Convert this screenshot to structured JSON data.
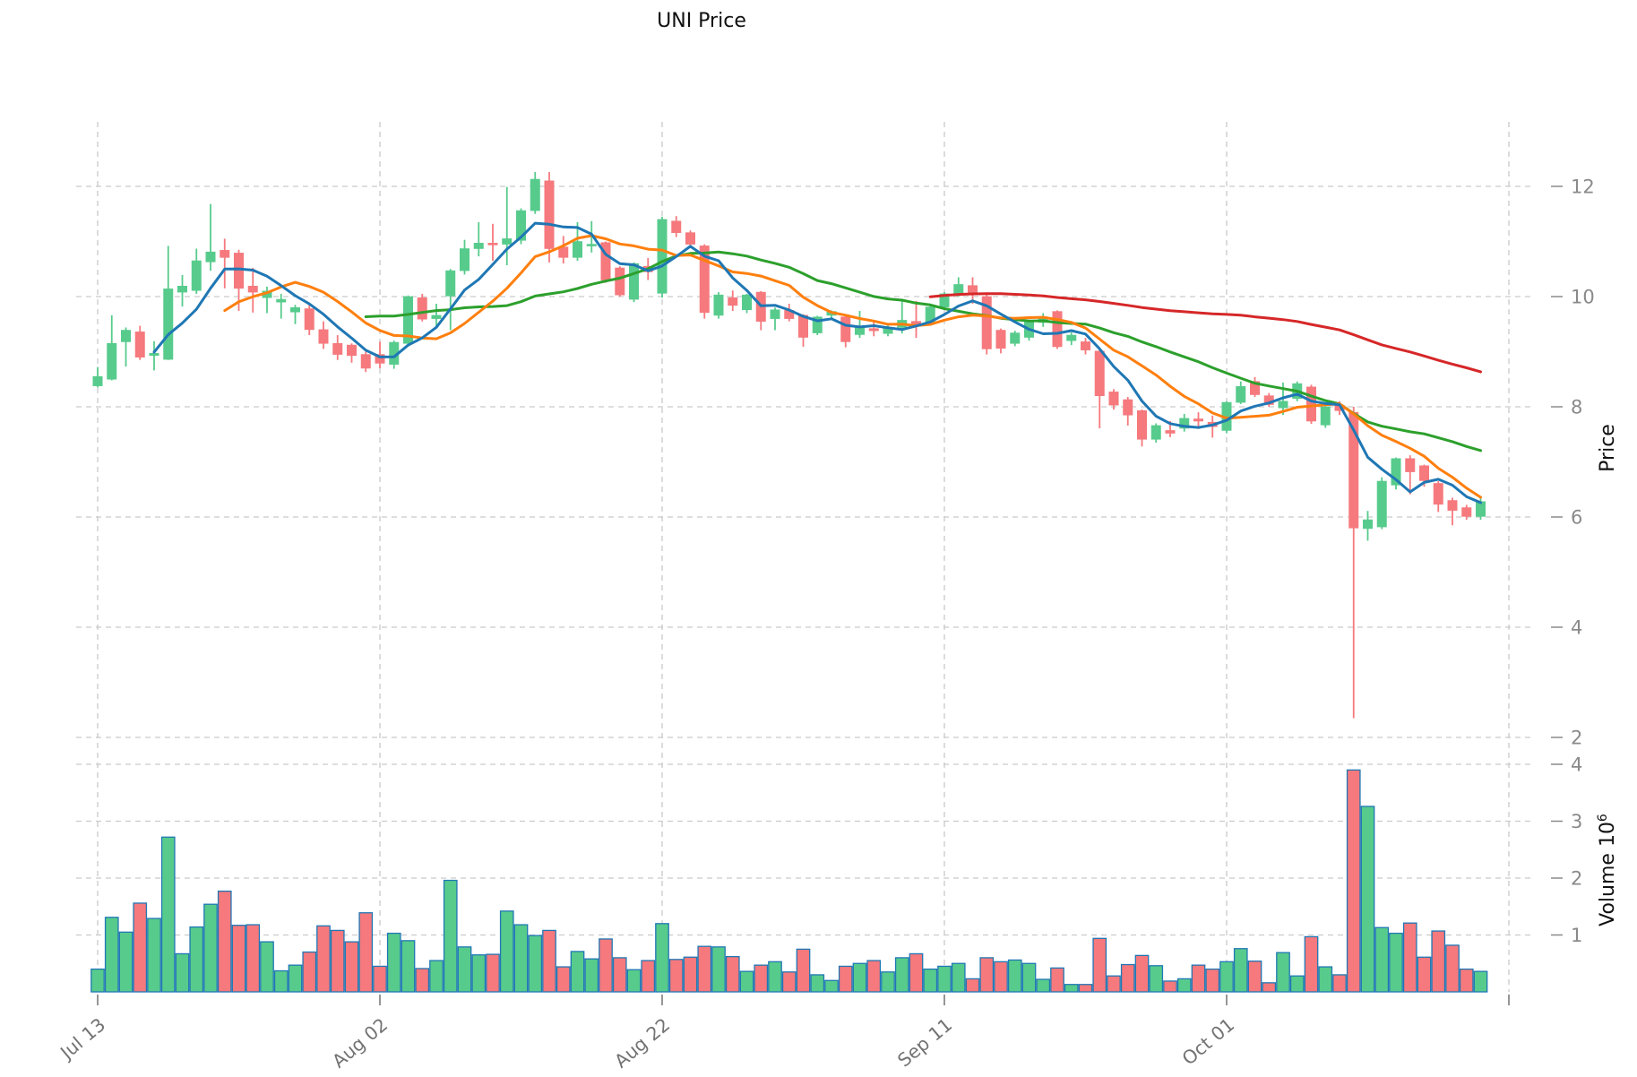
{
  "title": "UNI Price",
  "axes": {
    "price_label": "Price",
    "volume_label": "Volume",
    "volume_exponent": "6",
    "price_ticks": [
      2,
      4,
      6,
      8,
      10,
      12
    ],
    "volume_ticks": [
      1,
      2,
      3,
      4
    ],
    "x_ticks": [
      {
        "i": 0,
        "label": "Jul 13"
      },
      {
        "i": 20,
        "label": "Aug 02"
      },
      {
        "i": 40,
        "label": "Aug 22"
      },
      {
        "i": 60,
        "label": "Sep 11"
      },
      {
        "i": 80,
        "label": "Oct 01"
      },
      {
        "i": 100,
        "label": ""
      }
    ]
  },
  "colors": {
    "up": "#57CB8C",
    "down": "#F5797D",
    "volume_edge": "#2077B4",
    "ma5": "#1F77B4",
    "ma10": "#FF7F0E",
    "ma20": "#2CA02C",
    "ma60": "#D62728",
    "grid": "#CBCBCB",
    "ytick_text": "#8A8A8A",
    "xtick_text": "#737373",
    "axis_label_text": "#111111",
    "title_text": "#111111"
  },
  "chart_data": {
    "type": "candlestick+volume",
    "title": "UNI Price",
    "ylabel_price": "Price",
    "ylabel_volume": "Volume 10^6",
    "price_axis_range": [
      1.8,
      13.2
    ],
    "volume_axis_range_millions": [
      0,
      4.15
    ],
    "grid": "dashed",
    "moving_average_windows": [
      5,
      10,
      20,
      60
    ],
    "x_start_date": "Jul 13",
    "x_end_date": "Oct 19",
    "x_tick_labels": [
      "Jul 13",
      "Aug 02",
      "Aug 22",
      "Sep 11",
      "Oct 01"
    ],
    "ohlcv_columns": [
      "open",
      "high",
      "low",
      "close",
      "volume_millions"
    ],
    "ohlcv": [
      [
        8.38,
        8.72,
        8.35,
        8.55,
        0.4
      ],
      [
        8.5,
        9.66,
        8.48,
        9.15,
        1.31
      ],
      [
        9.18,
        9.44,
        8.73,
        9.39,
        1.05
      ],
      [
        9.36,
        9.47,
        8.85,
        8.9,
        1.56
      ],
      [
        8.93,
        9.19,
        8.66,
        8.97,
        1.29
      ],
      [
        8.86,
        10.92,
        8.85,
        10.14,
        2.72
      ],
      [
        10.08,
        10.39,
        9.82,
        10.19,
        0.67
      ],
      [
        10.11,
        10.87,
        10.05,
        10.65,
        1.14
      ],
      [
        10.63,
        11.68,
        10.47,
        10.81,
        1.54
      ],
      [
        10.84,
        11.05,
        10.15,
        10.71,
        1.77
      ],
      [
        10.79,
        10.85,
        9.74,
        10.15,
        1.17
      ],
      [
        10.19,
        10.52,
        9.71,
        10.08,
        1.18
      ],
      [
        9.98,
        10.18,
        9.7,
        10.1,
        0.88
      ],
      [
        9.9,
        10.05,
        9.6,
        9.95,
        0.37
      ],
      [
        9.72,
        9.85,
        9.5,
        9.8,
        0.47
      ],
      [
        9.78,
        9.85,
        9.3,
        9.4,
        0.7
      ],
      [
        9.4,
        9.55,
        9.05,
        9.15,
        1.16
      ],
      [
        9.15,
        9.3,
        8.85,
        8.95,
        1.08
      ],
      [
        9.12,
        9.15,
        8.8,
        8.93,
        0.88
      ],
      [
        8.95,
        9.0,
        8.63,
        8.7,
        1.39
      ],
      [
        8.95,
        9.18,
        8.7,
        8.79,
        0.45
      ],
      [
        8.77,
        9.2,
        8.69,
        9.17,
        1.03
      ],
      [
        9.15,
        10.02,
        9.1,
        10.0,
        0.9
      ],
      [
        9.98,
        10.05,
        9.55,
        9.59,
        0.41
      ],
      [
        9.6,
        9.87,
        9.44,
        9.66,
        0.55
      ],
      [
        10.01,
        10.5,
        9.39,
        10.47,
        1.96
      ],
      [
        10.47,
        11.03,
        10.4,
        10.87,
        0.79
      ],
      [
        10.87,
        11.35,
        10.73,
        10.97,
        0.65
      ],
      [
        10.97,
        11.32,
        10.65,
        10.95,
        0.66
      ],
      [
        10.95,
        11.99,
        10.57,
        11.05,
        1.42
      ],
      [
        11.02,
        11.6,
        10.95,
        11.56,
        1.18
      ],
      [
        11.56,
        12.26,
        11.5,
        12.13,
        0.99
      ],
      [
        12.1,
        12.26,
        10.62,
        10.87,
        1.08
      ],
      [
        10.9,
        11.1,
        10.6,
        10.71,
        0.44
      ],
      [
        10.71,
        11.35,
        10.65,
        11.0,
        0.71
      ],
      [
        10.93,
        11.37,
        10.8,
        10.95,
        0.58
      ],
      [
        10.98,
        11.0,
        10.25,
        10.3,
        0.93
      ],
      [
        10.52,
        10.55,
        10.0,
        10.03,
        0.6
      ],
      [
        9.95,
        10.62,
        9.9,
        10.6,
        0.39
      ],
      [
        10.55,
        10.7,
        10.3,
        10.45,
        0.55
      ],
      [
        10.06,
        11.45,
        9.98,
        11.4,
        1.2
      ],
      [
        11.37,
        11.46,
        11.08,
        11.16,
        0.57
      ],
      [
        11.16,
        11.2,
        10.88,
        10.95,
        0.61
      ],
      [
        10.92,
        10.95,
        9.6,
        9.71,
        0.8
      ],
      [
        9.66,
        10.08,
        9.6,
        10.03,
        0.79
      ],
      [
        9.98,
        10.11,
        9.74,
        9.84,
        0.62
      ],
      [
        9.76,
        10.05,
        9.7,
        10.03,
        0.36
      ],
      [
        10.08,
        10.1,
        9.39,
        9.55,
        0.47
      ],
      [
        9.6,
        9.8,
        9.39,
        9.76,
        0.53
      ],
      [
        9.75,
        9.87,
        9.55,
        9.6,
        0.35
      ],
      [
        9.66,
        9.68,
        9.09,
        9.26,
        0.75
      ],
      [
        9.34,
        9.65,
        9.3,
        9.63,
        0.3
      ],
      [
        9.66,
        9.75,
        9.58,
        9.73,
        0.2
      ],
      [
        9.63,
        9.65,
        9.08,
        9.18,
        0.45
      ],
      [
        9.31,
        9.74,
        9.25,
        9.44,
        0.5
      ],
      [
        9.42,
        9.55,
        9.28,
        9.38,
        0.55
      ],
      [
        9.33,
        9.5,
        9.28,
        9.44,
        0.35
      ],
      [
        9.44,
        9.92,
        9.33,
        9.57,
        0.6
      ],
      [
        9.55,
        9.92,
        9.25,
        9.5,
        0.67
      ],
      [
        9.53,
        9.85,
        9.48,
        9.81,
        0.4
      ],
      [
        9.81,
        10.08,
        9.78,
        10.05,
        0.45
      ],
      [
        10.03,
        10.35,
        10.0,
        10.22,
        0.5
      ],
      [
        10.2,
        10.35,
        9.87,
        10.03,
        0.23
      ],
      [
        10.0,
        10.05,
        8.95,
        9.05,
        0.6
      ],
      [
        9.39,
        9.42,
        8.97,
        9.06,
        0.53
      ],
      [
        9.15,
        9.38,
        9.1,
        9.34,
        0.56
      ],
      [
        9.26,
        9.58,
        9.2,
        9.55,
        0.5
      ],
      [
        9.53,
        9.7,
        9.45,
        9.63,
        0.22
      ],
      [
        9.73,
        9.75,
        9.05,
        9.09,
        0.42
      ],
      [
        9.2,
        9.35,
        9.12,
        9.3,
        0.13
      ],
      [
        9.18,
        9.25,
        8.95,
        9.03,
        0.13
      ],
      [
        9.01,
        9.05,
        7.61,
        8.2,
        0.94
      ],
      [
        8.27,
        8.32,
        7.95,
        8.03,
        0.28
      ],
      [
        8.13,
        8.18,
        7.66,
        7.85,
        0.48
      ],
      [
        7.93,
        7.95,
        7.28,
        7.41,
        0.64
      ],
      [
        7.41,
        7.7,
        7.35,
        7.66,
        0.46
      ],
      [
        7.57,
        7.74,
        7.45,
        7.52,
        0.19
      ],
      [
        7.61,
        7.87,
        7.55,
        7.79,
        0.23
      ],
      [
        7.78,
        7.9,
        7.6,
        7.74,
        0.47
      ],
      [
        7.72,
        7.84,
        7.44,
        7.64,
        0.4
      ],
      [
        7.57,
        8.1,
        7.52,
        8.08,
        0.53
      ],
      [
        8.08,
        8.46,
        8.05,
        8.37,
        0.76
      ],
      [
        8.46,
        8.54,
        8.18,
        8.22,
        0.54
      ],
      [
        8.2,
        8.25,
        8.0,
        8.04,
        0.16
      ],
      [
        7.98,
        8.44,
        7.85,
        8.1,
        0.69
      ],
      [
        8.15,
        8.46,
        8.1,
        8.42,
        0.28
      ],
      [
        8.36,
        8.4,
        7.69,
        7.74,
        0.97
      ],
      [
        7.67,
        8.05,
        7.62,
        8.0,
        0.44
      ],
      [
        8.03,
        8.1,
        7.85,
        7.93,
        0.3
      ],
      [
        7.9,
        8.0,
        2.35,
        5.8,
        3.9
      ],
      [
        5.79,
        6.11,
        5.57,
        5.95,
        3.26
      ],
      [
        5.82,
        6.72,
        5.78,
        6.65,
        1.13
      ],
      [
        6.58,
        7.08,
        6.5,
        7.06,
        1.03
      ],
      [
        7.06,
        7.12,
        6.41,
        6.82,
        1.21
      ],
      [
        6.93,
        6.95,
        6.55,
        6.66,
        0.61
      ],
      [
        6.61,
        6.65,
        6.09,
        6.23,
        1.07
      ],
      [
        6.3,
        6.35,
        5.85,
        6.12,
        0.82
      ],
      [
        6.17,
        6.22,
        5.95,
        6.01,
        0.4
      ],
      [
        6.01,
        6.37,
        5.95,
        6.28,
        0.36
      ]
    ]
  }
}
